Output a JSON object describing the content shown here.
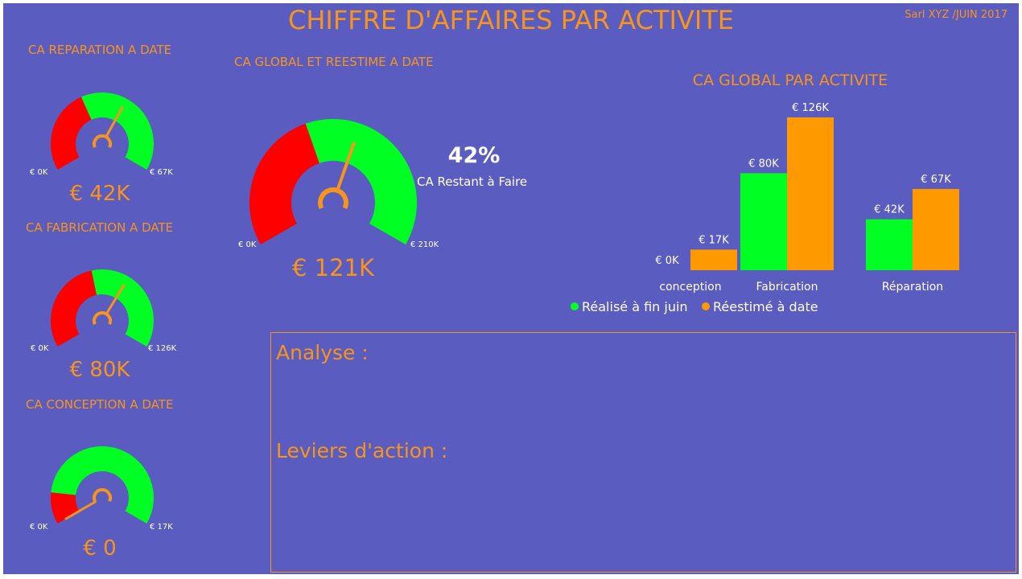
{
  "title": "CHIFFRE D'AFFAIRES PAR ACTIVITE",
  "company": "Sarl XYZ /JUIN 2017",
  "colors": {
    "background": "#5b5cbf",
    "accent": "#f7941d",
    "realise": "#00ff22",
    "reestime": "#ff9900",
    "gauge_red": "#ff0000"
  },
  "gauges": {
    "reparation": {
      "title": "CA REPARATION A DATE",
      "min": "€ 0K",
      "max": "€ 67K",
      "value": "€ 42K"
    },
    "fabrication": {
      "title": "CA FABRICATION A DATE",
      "min": "€ 0K",
      "max": "€ 126K",
      "value": "€ 80K"
    },
    "conception": {
      "title": "CA CONCEPTION A DATE",
      "min": "€ 0K",
      "max": "€ 17K",
      "value": "€ 0"
    },
    "global": {
      "title": "CA GLOBAL ET REESTIME A DATE",
      "min": "€ 0K",
      "max": "€ 210K",
      "value": "€ 121K",
      "percent": "42%",
      "percent_label": "CA Restant à Faire"
    }
  },
  "analysis": {
    "analyse_label": "Analyse :",
    "leviers_label": "Leviers d'action :"
  },
  "chart_data": [
    {
      "type": "gauge",
      "title": "CA REPARATION A DATE",
      "min": 0,
      "max": 67,
      "red_fraction": 0.4,
      "needle_fraction": 0.62,
      "value_label": "€ 42K"
    },
    {
      "type": "gauge",
      "title": "CA FABRICATION A DATE",
      "min": 0,
      "max": 126,
      "red_fraction": 0.45,
      "needle_fraction": 0.63,
      "value_label": "€ 80K"
    },
    {
      "type": "gauge",
      "title": "CA CONCEPTION A DATE",
      "min": 0,
      "max": 17,
      "red_fraction": 0.15,
      "needle_fraction": 0.0,
      "value_label": "€ 0"
    },
    {
      "type": "gauge",
      "title": "CA GLOBAL ET REESTIME A DATE",
      "min": 0,
      "max": 210,
      "red_fraction": 0.42,
      "needle_fraction": 0.58,
      "value_label": "€ 121K"
    },
    {
      "type": "bar",
      "title": "CA GLOBAL PAR ACTIVITE",
      "categories": [
        "conception",
        "Fabrication",
        "Réparation"
      ],
      "series": [
        {
          "name": "Réalisé à fin juin",
          "values": [
            0,
            80,
            42
          ],
          "labels": [
            "€ 0K",
            "€ 80K",
            "€ 42K"
          ]
        },
        {
          "name": "Réestimé à date",
          "values": [
            17,
            126,
            67
          ],
          "labels": [
            "€ 17K",
            "€ 126K",
            "€ 67K"
          ]
        }
      ],
      "ylim": [
        0,
        126
      ],
      "legend": "bottom"
    }
  ]
}
